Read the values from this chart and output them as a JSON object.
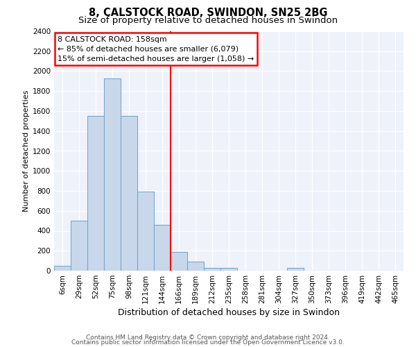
{
  "title": "8, CALSTOCK ROAD, SWINDON, SN25 2BG",
  "subtitle": "Size of property relative to detached houses in Swindon",
  "xlabel": "Distribution of detached houses by size in Swindon",
  "ylabel": "Number of detached properties",
  "bar_labels": [
    "6sqm",
    "29sqm",
    "52sqm",
    "75sqm",
    "98sqm",
    "121sqm",
    "144sqm",
    "166sqm",
    "189sqm",
    "212sqm",
    "235sqm",
    "258sqm",
    "281sqm",
    "304sqm",
    "327sqm",
    "350sqm",
    "373sqm",
    "396sqm",
    "419sqm",
    "442sqm",
    "465sqm"
  ],
  "bar_heights": [
    50,
    500,
    1550,
    1930,
    1550,
    790,
    460,
    190,
    90,
    30,
    25,
    0,
    0,
    0,
    25,
    0,
    0,
    0,
    0,
    0,
    0
  ],
  "bar_color": "#c8d8ea",
  "bar_edge_color": "#7aa8cc",
  "vline_x": 7,
  "vline_color": "red",
  "annotation_line1": "8 CALSTOCK ROAD: 158sqm",
  "annotation_line2": "← 85% of detached houses are smaller (6,079)",
  "annotation_line3": "15% of semi-detached houses are larger (1,058) →",
  "annotation_box_color": "white",
  "annotation_box_edge_color": "red",
  "ylim": [
    0,
    2400
  ],
  "yticks": [
    0,
    200,
    400,
    600,
    800,
    1000,
    1200,
    1400,
    1600,
    1800,
    2000,
    2200,
    2400
  ],
  "bg_color": "#eef2fb",
  "grid_color": "white",
  "footer_line1": "Contains HM Land Registry data © Crown copyright and database right 2024.",
  "footer_line2": "Contains public sector information licensed under the Open Government Licence v3.0.",
  "title_fontsize": 10.5,
  "subtitle_fontsize": 9.5,
  "ylabel_fontsize": 8,
  "xlabel_fontsize": 9,
  "footer_fontsize": 6.5,
  "tick_fontsize": 7.5,
  "annot_fontsize": 8
}
